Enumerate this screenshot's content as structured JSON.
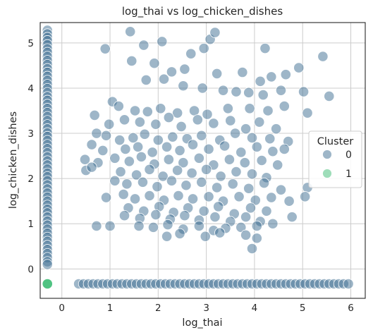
{
  "chart_data": {
    "type": "scatter",
    "title": "log_thai vs log_chicken_dishes",
    "xlabel": "log_thai",
    "ylabel": "log_chicken_dishes",
    "xlim": [
      -0.45,
      6.3
    ],
    "ylim": [
      -0.65,
      5.45
    ],
    "x_ticks": [
      0,
      1,
      2,
      3,
      4,
      5,
      6
    ],
    "y_ticks": [
      0,
      1,
      2,
      3,
      4,
      5
    ],
    "grid": true,
    "legend": {
      "title": "Cluster",
      "position": "right",
      "entries": [
        {
          "label": "0",
          "color": "#3d6e91"
        },
        {
          "label": "1",
          "color": "#3dbc74"
        }
      ]
    },
    "series": [
      {
        "name": "0",
        "color": "#3d6e91",
        "x_column_x": -0.3,
        "x_column_y": [
          5.28,
          5.2,
          5.12,
          5.05,
          4.96,
          4.87,
          4.79,
          4.7,
          4.61,
          4.52,
          4.43,
          4.35,
          4.26,
          4.17,
          4.08,
          3.99,
          3.9,
          3.81,
          3.73,
          3.64,
          3.55,
          3.46,
          3.37,
          3.28,
          3.19,
          3.1,
          3.01,
          2.93,
          2.84,
          2.75,
          2.66,
          2.57,
          2.48,
          2.39,
          2.3,
          2.21,
          2.12,
          2.04,
          1.95,
          1.86,
          1.77,
          1.68,
          1.59,
          1.5,
          1.41,
          1.32,
          1.24,
          1.15,
          1.06,
          0.97,
          0.88,
          0.79,
          0.7,
          0.61,
          0.52,
          0.43,
          0.34,
          0.25,
          0.16,
          0.1
        ],
        "y_row_y": -0.33,
        "y_row_x": [
          0.35,
          0.45,
          0.55,
          0.65,
          0.75,
          0.85,
          0.95,
          1.05,
          1.15,
          1.25,
          1.35,
          1.45,
          1.55,
          1.65,
          1.75,
          1.85,
          1.95,
          2.05,
          2.15,
          2.25,
          2.35,
          2.45,
          2.55,
          2.65,
          2.75,
          2.85,
          2.95,
          3.05,
          3.15,
          3.25,
          3.35,
          3.45,
          3.55,
          3.65,
          3.75,
          3.85,
          3.95,
          4.05,
          4.15,
          4.25,
          4.35,
          4.45,
          4.55,
          4.65,
          4.75,
          4.85,
          4.95,
          5.05,
          5.15,
          5.25,
          5.35,
          5.45,
          5.55,
          5.65,
          5.75,
          5.85,
          5.95
        ],
        "points": [
          [
            0.9,
            4.87
          ],
          [
            1.42,
            5.25
          ],
          [
            1.7,
            4.95
          ],
          [
            2.08,
            5.03
          ],
          [
            3.08,
            5.08
          ],
          [
            3.18,
            5.23
          ],
          [
            2.95,
            4.88
          ],
          [
            2.68,
            4.76
          ],
          [
            5.42,
            4.7
          ],
          [
            4.22,
            4.88
          ],
          [
            1.45,
            4.6
          ],
          [
            1.92,
            4.55
          ],
          [
            2.28,
            4.36
          ],
          [
            2.55,
            4.42
          ],
          [
            3.22,
            4.32
          ],
          [
            4.12,
            4.15
          ],
          [
            4.35,
            4.25
          ],
          [
            4.65,
            4.3
          ],
          [
            4.92,
            4.45
          ],
          [
            3.75,
            4.35
          ],
          [
            1.75,
            4.18
          ],
          [
            2.12,
            4.2
          ],
          [
            2.52,
            4.05
          ],
          [
            2.92,
            4.0
          ],
          [
            3.35,
            3.95
          ],
          [
            3.62,
            3.92
          ],
          [
            3.88,
            3.9
          ],
          [
            4.18,
            3.85
          ],
          [
            4.55,
            3.95
          ],
          [
            5.02,
            3.92
          ],
          [
            5.55,
            3.82
          ],
          [
            1.05,
            3.7
          ],
          [
            1.18,
            3.6
          ],
          [
            1.52,
            3.5
          ],
          [
            1.78,
            3.48
          ],
          [
            2.05,
            3.55
          ],
          [
            2.4,
            3.45
          ],
          [
            2.75,
            3.5
          ],
          [
            3.02,
            3.42
          ],
          [
            3.45,
            3.55
          ],
          [
            3.9,
            3.55
          ],
          [
            4.28,
            3.5
          ],
          [
            4.62,
            3.6
          ],
          [
            5.1,
            3.45
          ],
          [
            0.68,
            3.4
          ],
          [
            0.98,
            3.2
          ],
          [
            1.3,
            3.3
          ],
          [
            1.62,
            3.25
          ],
          [
            1.95,
            3.2
          ],
          [
            2.22,
            3.35
          ],
          [
            2.48,
            3.15
          ],
          [
            2.82,
            3.3
          ],
          [
            3.15,
            3.22
          ],
          [
            3.5,
            3.28
          ],
          [
            3.82,
            3.1
          ],
          [
            4.1,
            3.25
          ],
          [
            4.45,
            3.1
          ],
          [
            0.72,
            3.0
          ],
          [
            0.92,
            2.95
          ],
          [
            1.2,
            2.85
          ],
          [
            1.48,
            2.9
          ],
          [
            1.72,
            2.98
          ],
          [
            2.0,
            2.85
          ],
          [
            2.3,
            2.92
          ],
          [
            2.6,
            2.88
          ],
          [
            2.9,
            2.95
          ],
          [
            3.28,
            2.85
          ],
          [
            3.6,
            3.0
          ],
          [
            3.95,
            2.9
          ],
          [
            4.32,
            2.88
          ],
          [
            4.7,
            2.82
          ],
          [
            0.62,
            2.75
          ],
          [
            0.85,
            2.62
          ],
          [
            1.32,
            2.65
          ],
          [
            1.58,
            2.7
          ],
          [
            1.88,
            2.58
          ],
          [
            2.18,
            2.7
          ],
          [
            2.45,
            2.62
          ],
          [
            2.72,
            2.75
          ],
          [
            3.05,
            2.65
          ],
          [
            3.38,
            2.72
          ],
          [
            3.72,
            2.58
          ],
          [
            4.05,
            2.7
          ],
          [
            4.38,
            2.6
          ],
          [
            4.62,
            2.65
          ],
          [
            0.48,
            2.42
          ],
          [
            0.75,
            2.35
          ],
          [
            1.1,
            2.45
          ],
          [
            1.4,
            2.38
          ],
          [
            1.65,
            2.48
          ],
          [
            1.92,
            2.32
          ],
          [
            2.22,
            2.42
          ],
          [
            2.52,
            2.35
          ],
          [
            2.85,
            2.45
          ],
          [
            3.15,
            2.3
          ],
          [
            3.48,
            2.42
          ],
          [
            3.8,
            2.35
          ],
          [
            4.15,
            2.4
          ],
          [
            4.48,
            2.3
          ],
          [
            0.5,
            2.18
          ],
          [
            0.62,
            2.25
          ],
          [
            1.22,
            2.15
          ],
          [
            1.55,
            2.08
          ],
          [
            1.82,
            2.2
          ],
          [
            2.1,
            2.05
          ],
          [
            2.4,
            2.18
          ],
          [
            2.7,
            2.12
          ],
          [
            3.0,
            2.2
          ],
          [
            3.3,
            2.05
          ],
          [
            3.62,
            2.15
          ],
          [
            3.95,
            2.1
          ],
          [
            4.25,
            2.02
          ],
          [
            1.1,
            1.95
          ],
          [
            1.35,
            1.88
          ],
          [
            1.68,
            1.92
          ],
          [
            1.98,
            1.82
          ],
          [
            2.28,
            1.95
          ],
          [
            2.58,
            1.85
          ],
          [
            2.9,
            1.92
          ],
          [
            3.22,
            1.8
          ],
          [
            3.55,
            1.88
          ],
          [
            3.88,
            1.78
          ],
          [
            4.2,
            1.9
          ],
          [
            4.55,
            1.75
          ],
          [
            5.1,
            1.8
          ],
          [
            0.92,
            1.58
          ],
          [
            1.28,
            1.65
          ],
          [
            1.52,
            1.55
          ],
          [
            1.82,
            1.62
          ],
          [
            2.12,
            1.52
          ],
          [
            2.42,
            1.62
          ],
          [
            2.72,
            1.55
          ],
          [
            3.05,
            1.6
          ],
          [
            3.35,
            1.5
          ],
          [
            3.68,
            1.6
          ],
          [
            4.02,
            1.52
          ],
          [
            4.35,
            1.58
          ],
          [
            4.72,
            1.5
          ],
          [
            5.05,
            1.6
          ],
          [
            1.38,
            1.35
          ],
          [
            1.7,
            1.28
          ],
          [
            2.02,
            1.38
          ],
          [
            2.32,
            1.25
          ],
          [
            2.62,
            1.35
          ],
          [
            2.95,
            1.28
          ],
          [
            3.25,
            1.38
          ],
          [
            3.58,
            1.22
          ],
          [
            3.92,
            1.35
          ],
          [
            4.25,
            1.28
          ],
          [
            1.3,
            1.18
          ],
          [
            1.62,
            1.12
          ],
          [
            1.95,
            1.2
          ],
          [
            2.25,
            1.1
          ],
          [
            2.55,
            1.18
          ],
          [
            2.85,
            1.08
          ],
          [
            3.18,
            1.15
          ],
          [
            3.5,
            1.05
          ],
          [
            3.82,
            1.15
          ],
          [
            4.12,
            1.05
          ],
          [
            4.78,
            1.15
          ],
          [
            0.72,
            0.95
          ],
          [
            1.0,
            0.95
          ],
          [
            1.6,
            0.95
          ],
          [
            1.9,
            0.92
          ],
          [
            2.2,
            0.98
          ],
          [
            2.52,
            0.88
          ],
          [
            2.85,
            0.95
          ],
          [
            3.15,
            0.85
          ],
          [
            3.4,
            0.9
          ],
          [
            3.72,
            0.92
          ],
          [
            4.05,
            0.95
          ],
          [
            4.38,
            1.0
          ],
          [
            2.18,
            0.72
          ],
          [
            2.45,
            0.78
          ],
          [
            2.98,
            0.72
          ],
          [
            3.28,
            0.8
          ],
          [
            3.82,
            0.75
          ],
          [
            4.05,
            0.68
          ],
          [
            3.95,
            0.45
          ]
        ]
      },
      {
        "name": "1",
        "color": "#3dbc74",
        "points": [
          [
            -0.3,
            -0.33
          ]
        ]
      }
    ]
  }
}
